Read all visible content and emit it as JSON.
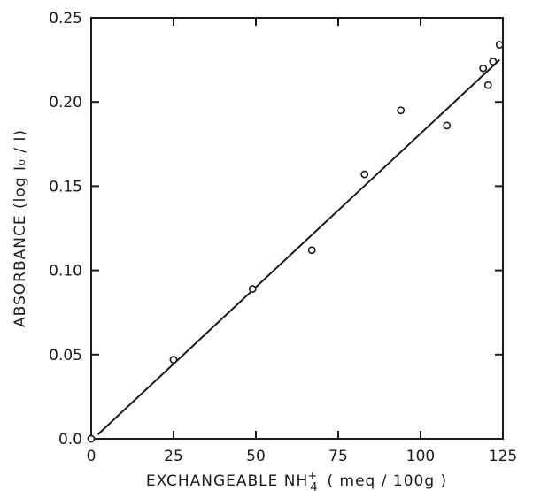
{
  "chart_data": {
    "type": "scatter",
    "title": "",
    "xlabel": {
      "main": "EXCHANGEABLE NH",
      "superscript": "+",
      "subscript": "4",
      "unit": "( meq / 100g )"
    },
    "ylabel": "ABSORBANCE (log I₀ / I)",
    "xlim": [
      0,
      125
    ],
    "ylim": [
      0,
      0.25
    ],
    "xticks": [
      "0",
      "25",
      "50",
      "75",
      "100",
      "125"
    ],
    "xtick_values": [
      0,
      25,
      50,
      75,
      100,
      125
    ],
    "yticks": [
      "0.0",
      "0.05",
      "0.10",
      "0.15",
      "0.20",
      "0.25"
    ],
    "ytick_values": [
      0,
      0.05,
      0.1,
      0.15,
      0.2,
      0.25
    ],
    "grid": false,
    "points": [
      {
        "x": 0,
        "y": 0.0
      },
      {
        "x": 25,
        "y": 0.047
      },
      {
        "x": 49,
        "y": 0.089
      },
      {
        "x": 67,
        "y": 0.112
      },
      {
        "x": 83,
        "y": 0.157
      },
      {
        "x": 94,
        "y": 0.195
      },
      {
        "x": 108,
        "y": 0.186
      },
      {
        "x": 119,
        "y": 0.22
      },
      {
        "x": 120.5,
        "y": 0.21
      },
      {
        "x": 122,
        "y": 0.224
      },
      {
        "x": 124,
        "y": 0.234
      }
    ],
    "fit_line": {
      "x": [
        2,
        124
      ],
      "y": [
        0.0025,
        0.225
      ]
    },
    "colors": {
      "ink": "#1a1a1a",
      "background": "#ffffff"
    }
  }
}
